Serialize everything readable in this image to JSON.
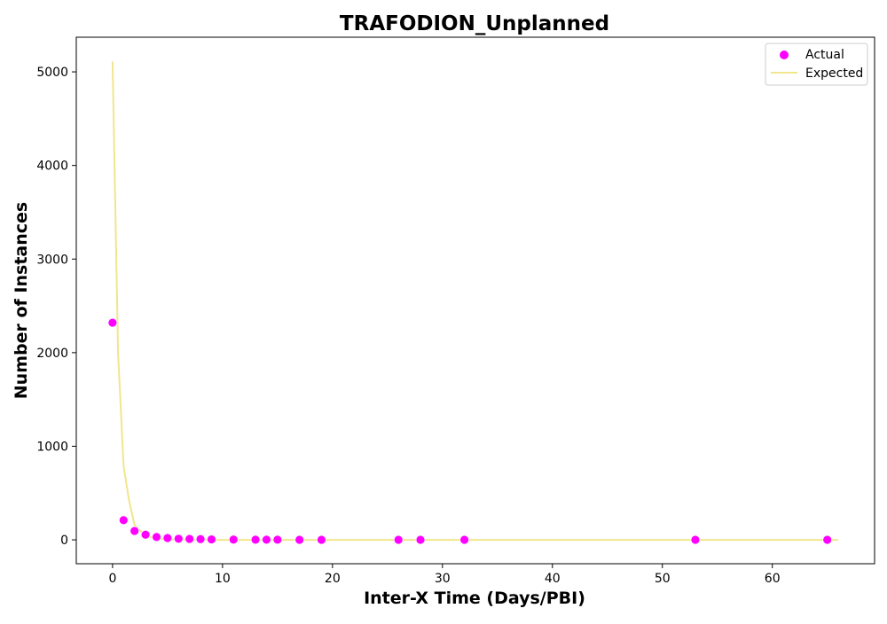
{
  "chart_data": {
    "type": "scatter",
    "title": "TRAFODION_Unplanned",
    "xlabel": "Inter-X Time (Days/PBI)",
    "ylabel": "Number of Instances",
    "xlim": [
      -3.3,
      69.3
    ],
    "ylim": [
      -255,
      5370
    ],
    "xticks": [
      0,
      10,
      20,
      30,
      40,
      50,
      60
    ],
    "yticks": [
      0,
      1000,
      2000,
      3000,
      4000,
      5000
    ],
    "grid": false,
    "legend_position": "top-right",
    "series": [
      {
        "name": "Actual",
        "kind": "scatter",
        "color": "#ff00ff",
        "points": [
          [
            0,
            2320
          ],
          [
            1,
            210
          ],
          [
            2,
            95
          ],
          [
            3,
            55
          ],
          [
            4,
            30
          ],
          [
            5,
            20
          ],
          [
            6,
            12
          ],
          [
            7,
            10
          ],
          [
            8,
            8
          ],
          [
            9,
            5
          ],
          [
            11,
            3
          ],
          [
            13,
            2
          ],
          [
            14,
            2
          ],
          [
            15,
            2
          ],
          [
            17,
            1
          ],
          [
            19,
            1
          ],
          [
            26,
            1
          ],
          [
            28,
            1
          ],
          [
            32,
            1
          ],
          [
            53,
            1
          ],
          [
            65,
            1
          ]
        ]
      },
      {
        "name": "Expected",
        "kind": "line",
        "color": "#f0e68c",
        "points": [
          [
            0,
            5110
          ],
          [
            0.5,
            2000
          ],
          [
            1,
            790
          ],
          [
            1.5,
            420
          ],
          [
            2,
            160
          ],
          [
            2.5,
            100
          ],
          [
            3,
            40
          ],
          [
            4,
            15
          ],
          [
            5,
            6
          ],
          [
            6,
            2
          ],
          [
            7,
            1
          ],
          [
            8,
            0.5
          ],
          [
            10,
            0
          ],
          [
            20,
            0
          ],
          [
            30,
            0
          ],
          [
            40,
            0
          ],
          [
            50,
            0
          ],
          [
            60,
            0
          ],
          [
            66,
            0
          ]
        ]
      }
    ]
  }
}
